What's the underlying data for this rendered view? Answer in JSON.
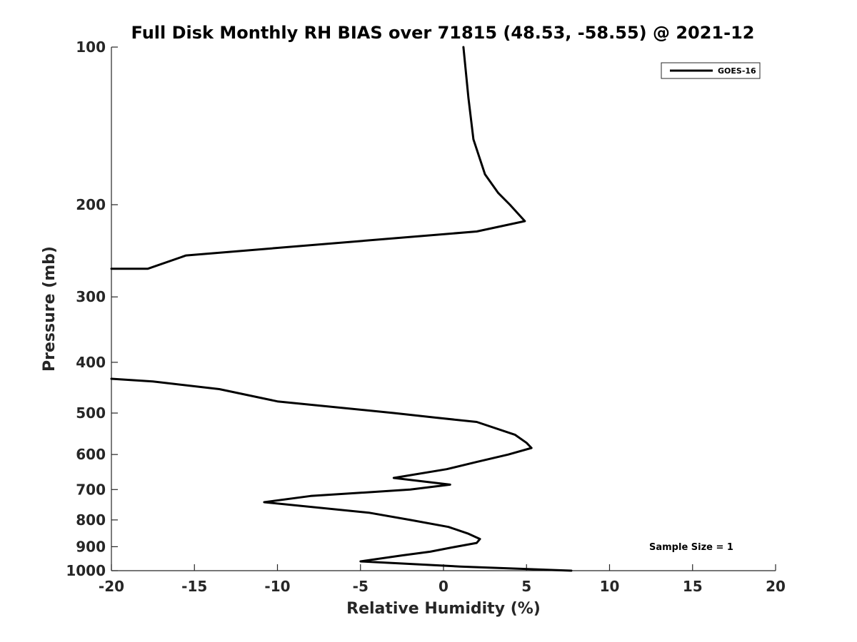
{
  "chart_data": {
    "type": "line",
    "title": "Full Disk Monthly RH BIAS over 71815 (48.53, -58.55) @ 2021-12",
    "xlabel": "Relative Humidity (%)",
    "ylabel": "Pressure (mb)",
    "xlim": [
      -20,
      20
    ],
    "ylim": [
      100,
      1000
    ],
    "y_scale": "log",
    "y_direction": "reversed",
    "x_ticks": [
      -20,
      -15,
      -10,
      -5,
      0,
      5,
      10,
      15,
      20
    ],
    "x_tick_labels": [
      "-20",
      "-15",
      "-10",
      "-5",
      "0",
      "5",
      "10",
      "15",
      "20"
    ],
    "y_ticks": [
      100,
      200,
      300,
      400,
      500,
      600,
      700,
      800,
      900,
      1000
    ],
    "y_tick_labels": [
      "100",
      "200",
      "300",
      "400",
      "500",
      "600",
      "700",
      "800",
      "900",
      "1000"
    ],
    "grid": false,
    "legend": {
      "placement": "top-right",
      "entries": [
        "GOES-16"
      ]
    },
    "annotations": [
      {
        "text": "Sample Size = 1"
      }
    ],
    "series": [
      {
        "name": "GOES-16",
        "color": "#000000",
        "segments": [
          [
            {
              "x": 1.2,
              "y": 100
            },
            {
              "x": 1.5,
              "y": 125
            },
            {
              "x": 1.8,
              "y": 150
            },
            {
              "x": 2.5,
              "y": 175
            },
            {
              "x": 3.3,
              "y": 190
            },
            {
              "x": 4.0,
              "y": 200
            },
            {
              "x": 4.9,
              "y": 215
            },
            {
              "x": 2.0,
              "y": 225
            },
            {
              "x": -15.5,
              "y": 250
            },
            {
              "x": -17.8,
              "y": 265
            },
            {
              "x": -20.0,
              "y": 265
            }
          ],
          [
            {
              "x": -20.0,
              "y": 430
            },
            {
              "x": -17.5,
              "y": 435
            },
            {
              "x": -13.5,
              "y": 450
            },
            {
              "x": -10.0,
              "y": 475
            },
            {
              "x": -3.0,
              "y": 500
            },
            {
              "x": -0.5,
              "y": 510
            },
            {
              "x": 2.0,
              "y": 520
            },
            {
              "x": 4.3,
              "y": 550
            },
            {
              "x": 5.0,
              "y": 570
            },
            {
              "x": 5.3,
              "y": 583
            },
            {
              "x": 3.9,
              "y": 600
            },
            {
              "x": 2.0,
              "y": 620
            },
            {
              "x": 0.2,
              "y": 640
            },
            {
              "x": -3.0,
              "y": 665
            },
            {
              "x": 0.4,
              "y": 685
            },
            {
              "x": -2.0,
              "y": 700
            },
            {
              "x": -8.0,
              "y": 720
            },
            {
              "x": -10.8,
              "y": 740
            },
            {
              "x": -4.5,
              "y": 775
            },
            {
              "x": -2.0,
              "y": 800
            },
            {
              "x": 0.3,
              "y": 825
            },
            {
              "x": 1.5,
              "y": 850
            },
            {
              "x": 2.2,
              "y": 870
            },
            {
              "x": 2.0,
              "y": 885
            },
            {
              "x": 0.5,
              "y": 903
            },
            {
              "x": -0.8,
              "y": 920
            },
            {
              "x": -2.5,
              "y": 935
            },
            {
              "x": -5.0,
              "y": 960
            },
            {
              "x": 1.0,
              "y": 982
            },
            {
              "x": 7.7,
              "y": 1000
            }
          ]
        ]
      }
    ]
  }
}
